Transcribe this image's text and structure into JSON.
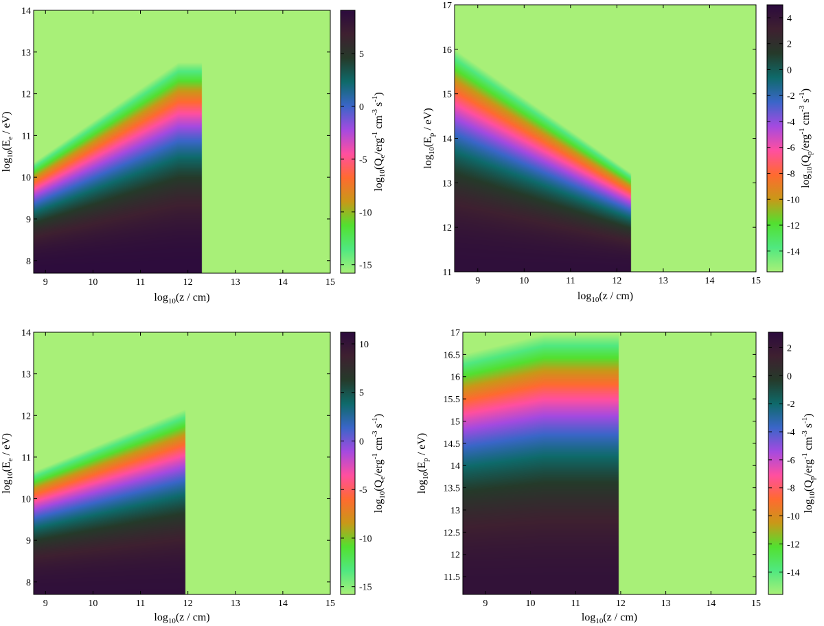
{
  "colorscale": [
    "#2b0a3d",
    "#3e2030",
    "#253a2a",
    "#0e6a6a",
    "#3a66c8",
    "#a44ae0",
    "#ff4fa0",
    "#ff6a30",
    "#c99818",
    "#52e030",
    "#50e880",
    "#a8f078"
  ],
  "background_color": "#a8f078",
  "chart_data": [
    {
      "type": "heatmap",
      "xlabel_html": "log<tspan font-size=\"11\" dy=\"4\">10</tspan><tspan dy=\"-4\">(z / cm)</tspan>",
      "ylabel_html": "log<tspan font-size=\"11\" dy=\"4\">10</tspan><tspan dy=\"-4\">(E</tspan><tspan font-size=\"11\" dy=\"4\">e</tspan><tspan dy=\"-4\"> / eV)</tspan>",
      "cblabel_html": "log<tspan font-size=\"11\" dy=\"4\">10</tspan><tspan dy=\"-4\">(Q</tspan><tspan font-size=\"11\" dy=\"4\">e</tspan><tspan dy=\"-4\">/erg</tspan><tspan font-size=\"11\" dy=\"-7\">-1</tspan><tspan dy=\"7\"> cm</tspan><tspan font-size=\"11\" dy=\"-7\">-3</tspan><tspan dy=\"7\"> s</tspan><tspan font-size=\"11\" dy=\"-7\">-1</tspan><tspan dy=\"7\">)</tspan>",
      "xlim": [
        8.75,
        15
      ],
      "ylim": [
        7.7,
        14
      ],
      "x_ticks": [
        "9",
        "10",
        "11",
        "12",
        "13",
        "14",
        "15"
      ],
      "y_ticks": [
        "8",
        "9",
        "10",
        "11",
        "12",
        "13",
        "14"
      ],
      "cbar_range": [
        -15.8,
        9.1
      ],
      "cbar_ticks": [
        "5",
        "0",
        "-5",
        "-10",
        "-15"
      ],
      "cutoff_z": 12.3,
      "z_peak": 11.8,
      "edge_at_zmin": 10.35,
      "edge_at_peak": 12.75,
      "edge_slope_after_peak": 0,
      "emission_at_ymin": 8.9
    },
    {
      "type": "heatmap",
      "xlabel_html": "log<tspan font-size=\"11\" dy=\"4\">10</tspan><tspan dy=\"-4\">(z / cm)</tspan>",
      "ylabel_html": "log<tspan font-size=\"11\" dy=\"4\">10</tspan><tspan dy=\"-4\">(E</tspan><tspan font-size=\"11\" dy=\"4\">p</tspan><tspan dy=\"-4\"> / eV)</tspan>",
      "cblabel_html": "log<tspan font-size=\"11\" dy=\"4\">10</tspan><tspan dy=\"-4\">(Q</tspan><tspan font-size=\"11\" dy=\"4\">p</tspan><tspan dy=\"-4\">/erg</tspan><tspan font-size=\"11\" dy=\"-7\">-1</tspan><tspan dy=\"7\"> cm</tspan><tspan font-size=\"11\" dy=\"-7\">-3</tspan><tspan dy=\"7\"> s</tspan><tspan font-size=\"11\" dy=\"-7\">-1</tspan><tspan dy=\"7\">)</tspan>",
      "xlim": [
        8.5,
        15
      ],
      "ylim": [
        11,
        17
      ],
      "x_ticks": [
        "9",
        "10",
        "11",
        "12",
        "13",
        "14",
        "15"
      ],
      "y_ticks": [
        "11",
        "12",
        "13",
        "14",
        "15",
        "16",
        "17"
      ],
      "cbar_range": [
        -15.6,
        5
      ],
      "cbar_ticks": [
        "4",
        "2",
        "0",
        "-2",
        "-4",
        "-6",
        "-8",
        "-10",
        "-12",
        "-14"
      ],
      "cutoff_z": 12.3,
      "z_peak": 8.5,
      "edge_at_zmin": 16.0,
      "edge_at_peak": 16.0,
      "edge_slope_after_peak": -0.73,
      "emission_at_ymin": 4.6
    },
    {
      "type": "heatmap",
      "xlabel_html": "log<tspan font-size=\"11\" dy=\"4\">10</tspan><tspan dy=\"-4\">(z / cm)</tspan>",
      "ylabel_html": "log<tspan font-size=\"11\" dy=\"4\">10</tspan><tspan dy=\"-4\">(E</tspan><tspan font-size=\"11\" dy=\"4\">e</tspan><tspan dy=\"-4\"> / eV)</tspan>",
      "cblabel_html": "log<tspan font-size=\"11\" dy=\"4\">10</tspan><tspan dy=\"-4\">(Q</tspan><tspan font-size=\"11\" dy=\"4\">e</tspan><tspan dy=\"-4\">/erg</tspan><tspan font-size=\"11\" dy=\"-7\">-1</tspan><tspan dy=\"7\"> cm</tspan><tspan font-size=\"11\" dy=\"-7\">-3</tspan><tspan dy=\"7\"> s</tspan><tspan font-size=\"11\" dy=\"-7\">-1</tspan><tspan dy=\"7\">)</tspan>",
      "xlim": [
        8.75,
        15
      ],
      "ylim": [
        7.7,
        14
      ],
      "x_ticks": [
        "9",
        "10",
        "11",
        "12",
        "13",
        "14",
        "15"
      ],
      "y_ticks": [
        "8",
        "9",
        "10",
        "11",
        "12",
        "13",
        "14"
      ],
      "cbar_range": [
        -15.8,
        11.2
      ],
      "cbar_ticks": [
        "10",
        "5",
        "0",
        "-5",
        "-10",
        "-15"
      ],
      "cutoff_z": 11.95,
      "z_peak": 11.95,
      "edge_at_zmin": 10.65,
      "edge_at_peak": 12.15,
      "edge_slope_after_peak": 0,
      "emission_at_ymin": 10.6
    },
    {
      "type": "heatmap",
      "xlabel_html": "log<tspan font-size=\"11\" dy=\"4\">10</tspan><tspan dy=\"-4\">(z / cm)</tspan>",
      "ylabel_html": "log<tspan font-size=\"11\" dy=\"4\">10</tspan><tspan dy=\"-4\">(E</tspan><tspan font-size=\"11\" dy=\"4\">p</tspan><tspan dy=\"-4\"> / eV)</tspan>",
      "cblabel_html": "log<tspan font-size=\"11\" dy=\"4\">10</tspan><tspan dy=\"-4\">(Q</tspan><tspan font-size=\"11\" dy=\"4\">p</tspan><tspan dy=\"-4\">/erg</tspan><tspan font-size=\"11\" dy=\"-7\">-1</tspan><tspan dy=\"7\"> cm</tspan><tspan font-size=\"11\" dy=\"-7\">-3</tspan><tspan dy=\"7\"> s</tspan><tspan font-size=\"11\" dy=\"-7\">-1</tspan><tspan dy=\"7\">)</tspan>",
      "xlim": [
        8.5,
        15
      ],
      "ylim": [
        11.1,
        17
      ],
      "x_ticks": [
        "9",
        "10",
        "11",
        "12",
        "13",
        "14",
        "15"
      ],
      "y_ticks": [
        "11.5",
        "12",
        "12.5",
        "13",
        "13.5",
        "14",
        "14.5",
        "15",
        "15.5",
        "16",
        "16.5",
        "17"
      ],
      "cbar_range": [
        -15.6,
        3.1
      ],
      "cbar_ticks": [
        "2",
        "0",
        "-2",
        "-4",
        "-6",
        "-8",
        "-10",
        "-12",
        "-14"
      ],
      "cutoff_z": 11.95,
      "z_peak": 10.3,
      "edge_at_zmin": 16.5,
      "edge_at_peak": 16.95,
      "edge_slope_after_peak": 0,
      "emission_at_ymin": 2.5
    }
  ]
}
